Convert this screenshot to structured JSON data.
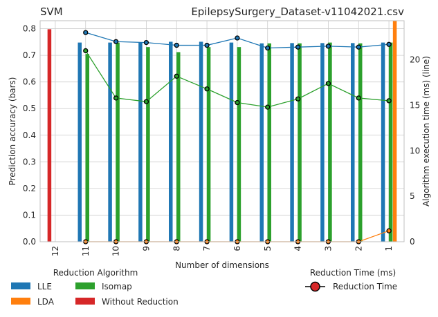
{
  "chart_data": {
    "type": "bar+line",
    "title_left": "SVM",
    "title_right": "EpilepsySurgery_Dataset-v11042021.csv",
    "xlabel": "Number of dimensions",
    "ylabel_left": "Prediction accuracy (bars)",
    "ylabel_right": "Algorithm execution time (ms) (line)",
    "categories": [
      "12",
      "11",
      "10",
      "9",
      "8",
      "7",
      "6",
      "5",
      "4",
      "3",
      "2",
      "1"
    ],
    "ylim_left": [
      0,
      0.83
    ],
    "yticks_left": [
      "0.0",
      "0.1",
      "0.2",
      "0.3",
      "0.4",
      "0.5",
      "0.6",
      "0.7",
      "0.8"
    ],
    "ylim_right": [
      0,
      24.3
    ],
    "yticks_right": [
      "0",
      "5",
      "10",
      "15",
      "20"
    ],
    "bar_series": [
      {
        "name": "LLE",
        "color": "#1f77b4",
        "values": [
          null,
          0.748,
          0.748,
          0.748,
          0.751,
          0.751,
          0.748,
          0.745,
          0.746,
          0.746,
          0.746,
          0.748
        ]
      },
      {
        "name": "LDA",
        "color": "#ff7f0e",
        "values": [
          null,
          null,
          null,
          null,
          null,
          null,
          null,
          null,
          null,
          null,
          null,
          0.86
        ]
      },
      {
        "name": "Isomap",
        "color": "#2ca02c",
        "values": [
          null,
          0.705,
          0.748,
          0.731,
          0.712,
          0.731,
          0.731,
          0.745,
          0.745,
          0.748,
          0.745,
          0.748
        ]
      },
      {
        "name": "Without Reduction",
        "color": "#d62728",
        "values": [
          0.798,
          null,
          null,
          null,
          null,
          null,
          null,
          null,
          null,
          null,
          null,
          null
        ]
      }
    ],
    "line_series": [
      {
        "name": "LLE",
        "color": "#1f77b4",
        "values": [
          null,
          23.0,
          22.0,
          21.9,
          21.6,
          21.6,
          22.4,
          21.3,
          21.4,
          21.5,
          21.4,
          21.7
        ]
      },
      {
        "name": "Isomap",
        "color": "#2ca02c",
        "values": [
          null,
          21.0,
          15.8,
          15.4,
          18.2,
          16.8,
          15.3,
          14.8,
          15.7,
          17.4,
          15.8,
          15.5
        ]
      },
      {
        "name": "LDA",
        "color": "#ff7f0e",
        "values": [
          null,
          0,
          0,
          0,
          0,
          0,
          0,
          0,
          0,
          0,
          0,
          1.2
        ]
      }
    ],
    "legend": {
      "algo_title": "Reduction Algorithm",
      "items": [
        {
          "label": "LLE",
          "color": "#1f77b4"
        },
        {
          "label": "LDA",
          "color": "#ff7f0e"
        },
        {
          "label": "Isomap",
          "color": "#2ca02c"
        },
        {
          "label": "Without Reduction",
          "color": "#d62728"
        }
      ],
      "time_title": "Reduction Time (ms)",
      "time_label": "Reduction Time",
      "time_marker_color": "#d62728"
    }
  }
}
